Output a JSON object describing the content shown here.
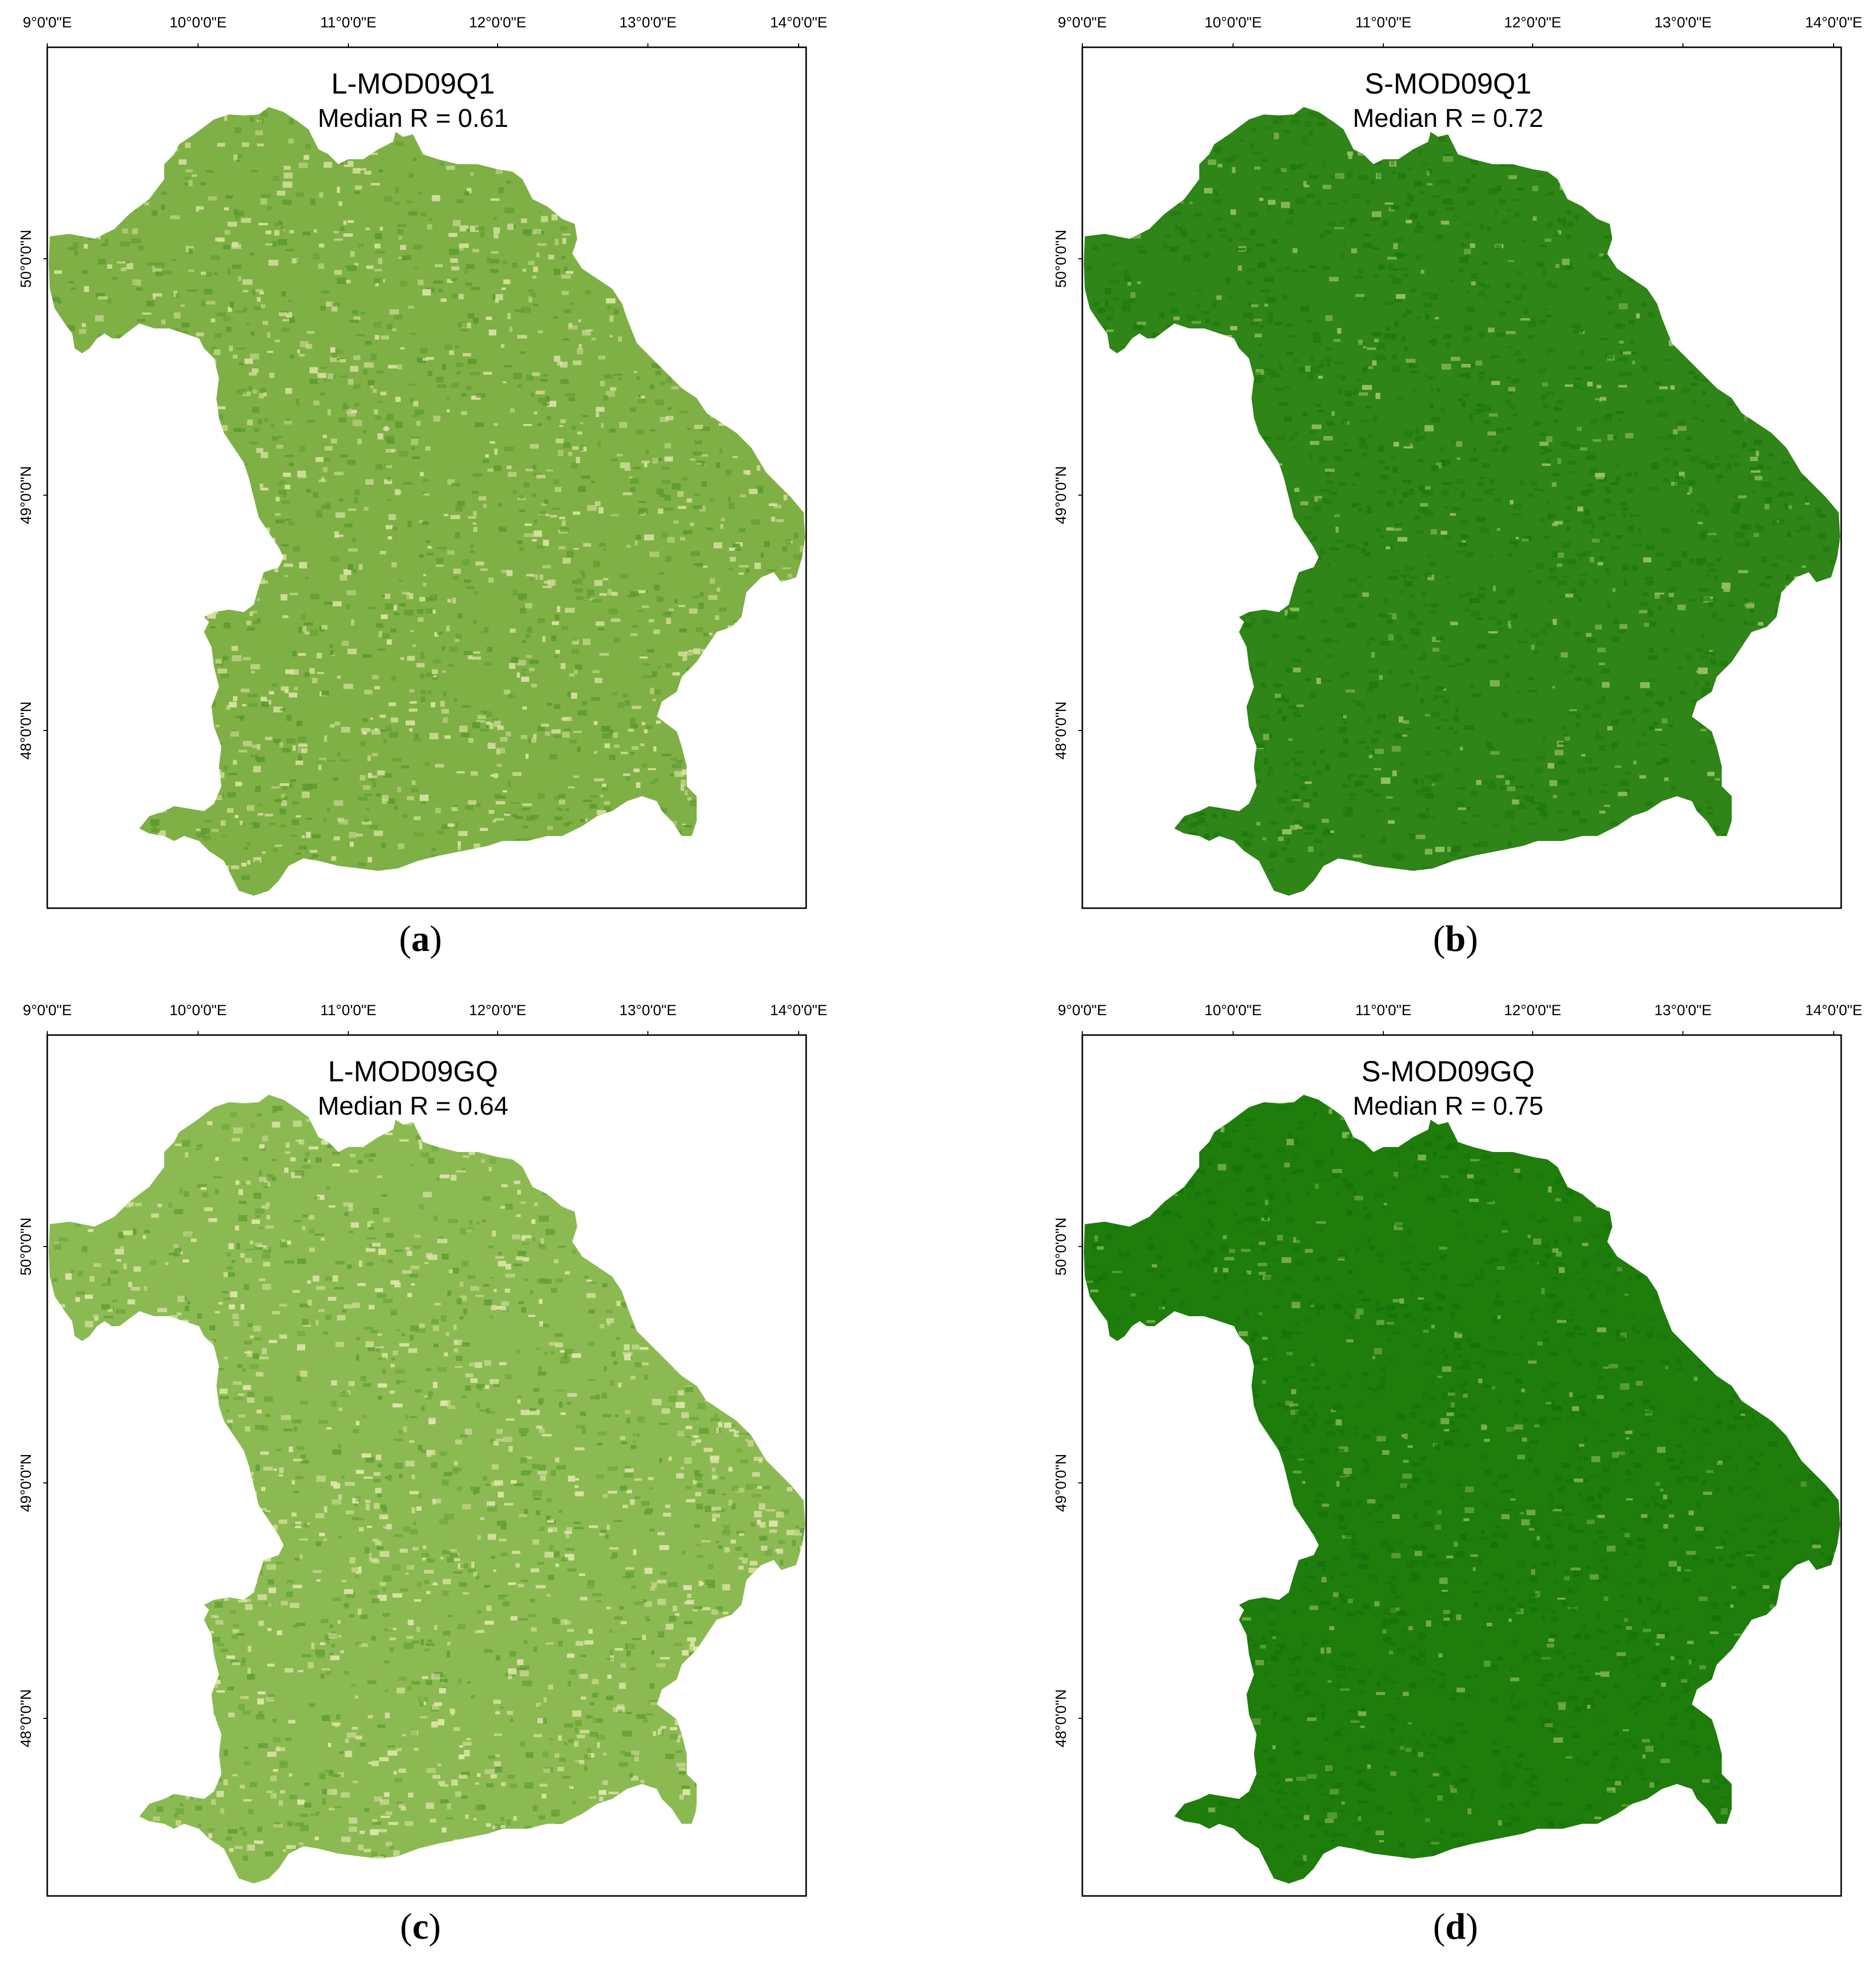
{
  "lon_ticks": [
    "9°0'0\"E",
    "10°0'0\"E",
    "11°0'0\"E",
    "12°0'0\"E",
    "13°0'0\"E",
    "14°0'0\"E"
  ],
  "lat_ticks": [
    "50°0'0\"N",
    "49°0'0\"N",
    "48°0'0\"N"
  ],
  "panels": [
    {
      "title": "L-MOD09Q1",
      "subtitle": "Median R = 0.61",
      "caption_letter": "a",
      "fill": "#7fb045",
      "fill_dark": "#5e9a2e",
      "fill_light": "#d8e4a2"
    },
    {
      "title": "S-MOD09Q1",
      "subtitle": "Median R = 0.72",
      "caption_letter": "b",
      "fill": "#2f8517",
      "fill_dark": "#1f7a0c",
      "fill_light": "#9ac566"
    },
    {
      "title": "L-MOD09GQ",
      "subtitle": "Median R = 0.64",
      "caption_letter": "c",
      "fill": "#8cba52",
      "fill_dark": "#64a034",
      "fill_light": "#dfe8aa"
    },
    {
      "title": "S-MOD09GQ",
      "subtitle": "Median R = 0.75",
      "caption_letter": "d",
      "fill": "#1f7d0c",
      "fill_dark": "#17730a",
      "fill_light": "#7fb552"
    }
  ]
}
